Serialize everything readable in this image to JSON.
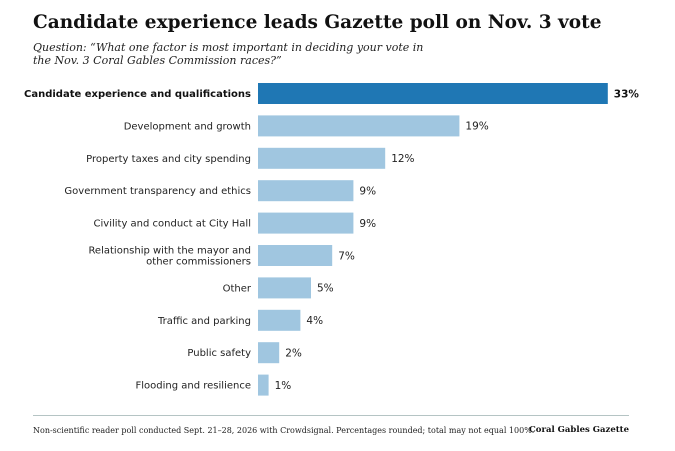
{
  "header": {
    "title": "Candidate experience leads Gazette poll on Nov. 3 vote",
    "subtitle": "Question: “What one factor is most important in deciding your vote in the Nov. 3 Coral Gables Commission races?”"
  },
  "footer": {
    "note": "Non-scientific reader poll conducted Sept. 21–28, 2026 with Crowdsignal. Percentages rounded; total may not equal 100%.",
    "source": "Coral Gables Gazette"
  },
  "colors": {
    "highlight": "#1f77b4",
    "bar": "#a0c6e0"
  },
  "chart_data": {
    "type": "bar",
    "orientation": "horizontal",
    "categories": [
      [
        "Candidate experience and qualifications"
      ],
      [
        "Development and growth"
      ],
      [
        "Property taxes and city spending"
      ],
      [
        "Government transparency and ethics"
      ],
      [
        "Civility and conduct at City Hall"
      ],
      [
        "Relationship with the mayor and",
        "other commissioners"
      ],
      [
        "Other"
      ],
      [
        "Traffic and parking"
      ],
      [
        "Public safety"
      ],
      [
        "Flooding and resilience"
      ]
    ],
    "values": [
      33,
      19,
      12,
      9,
      9,
      7,
      5,
      4,
      2,
      1
    ],
    "value_labels": [
      "33%",
      "19%",
      "12%",
      "9%",
      "9%",
      "7%",
      "5%",
      "4%",
      "2%",
      "1%"
    ],
    "highlight_index": 0,
    "xlim": [
      0,
      35
    ],
    "grid": false,
    "legend": "none"
  }
}
